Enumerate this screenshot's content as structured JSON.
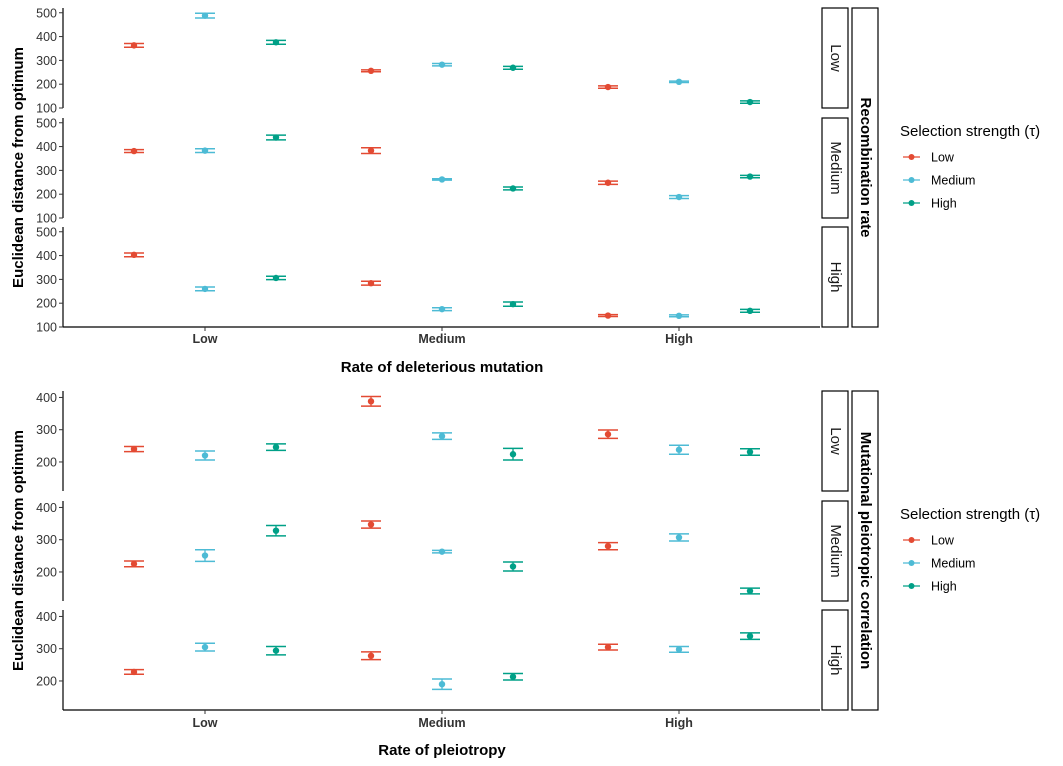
{
  "colors": {
    "Low": "#e34a33",
    "Medium": "#4dbbd5",
    "High": "#00a087"
  },
  "chart_data": [
    {
      "type": "scatter",
      "error_bars": true,
      "xlabel": "Rate of deleterious mutation",
      "ylabel": "Euclidean distance from optimum",
      "categories": [
        "Low",
        "Medium",
        "High"
      ],
      "ylim": [
        100,
        520
      ],
      "yticks": [
        100,
        200,
        300,
        400,
        500
      ],
      "facet_title": "Recombination rate",
      "legend": {
        "title": "Selection strength (τ)",
        "entries": [
          "Low",
          "Medium",
          "High"
        ],
        "position": "right"
      },
      "panels": [
        {
          "label": "Low",
          "series": [
            {
              "name": "Low",
              "values": [
                363,
                256,
                188
              ],
              "errors": [
                8,
                4,
                5
              ]
            },
            {
              "name": "Medium",
              "values": [
                488,
                282,
                210
              ],
              "errors": [
                10,
                5,
                3
              ]
            },
            {
              "name": "High",
              "values": [
                376,
                269,
                125
              ],
              "errors": [
                8,
                6,
                5
              ]
            }
          ]
        },
        {
          "label": "Medium",
          "series": [
            {
              "name": "Low",
              "values": [
                381,
                383,
                248
              ],
              "errors": [
                6,
                12,
                7
              ]
            },
            {
              "name": "Medium",
              "values": [
                383,
                262,
                188
              ],
              "errors": [
                8,
                3,
                6
              ]
            },
            {
              "name": "High",
              "values": [
                438,
                224,
                274
              ],
              "errors": [
                10,
                6,
                5
              ]
            }
          ]
        },
        {
          "label": "High",
          "series": [
            {
              "name": "Low",
              "values": [
                403,
                284,
                148
              ],
              "errors": [
                8,
                8,
                4
              ]
            },
            {
              "name": "Medium",
              "values": [
                260,
                175,
                147
              ],
              "errors": [
                8,
                6,
                4
              ]
            },
            {
              "name": "High",
              "values": [
                306,
                196,
                168
              ],
              "errors": [
                7,
                9,
                6
              ]
            }
          ]
        }
      ]
    },
    {
      "type": "scatter",
      "error_bars": true,
      "xlabel": "Rate of pleiotropy",
      "ylabel": "Euclidean distance from optimum",
      "categories": [
        "Low",
        "Medium",
        "High"
      ],
      "ylim": [
        110,
        420
      ],
      "yticks": [
        200,
        300,
        400
      ],
      "facet_title": "Mutational pleiotropic correlation",
      "legend": {
        "title": "Selection strength (τ)",
        "entries": [
          "Low",
          "Medium",
          "High"
        ],
        "position": "right"
      },
      "panels": [
        {
          "label": "Low",
          "series": [
            {
              "name": "Low",
              "values": [
                240,
                388,
                286
              ],
              "errors": [
                8,
                15,
                13
              ]
            },
            {
              "name": "Medium",
              "values": [
                220,
                280,
                238
              ],
              "errors": [
                14,
                10,
                14
              ]
            },
            {
              "name": "High",
              "values": [
                246,
                224,
                231
              ],
              "errors": [
                10,
                18,
                10
              ]
            }
          ]
        },
        {
          "label": "Medium",
          "series": [
            {
              "name": "Low",
              "values": [
                225,
                347,
                280
              ],
              "errors": [
                9,
                11,
                11
              ]
            },
            {
              "name": "Medium",
              "values": [
                251,
                263,
                307
              ],
              "errors": [
                18,
                4,
                11
              ]
            },
            {
              "name": "High",
              "values": [
                328,
                217,
                141
              ],
              "errors": [
                16,
                14,
                9
              ]
            }
          ]
        },
        {
          "label": "High",
          "series": [
            {
              "name": "Low",
              "values": [
                228,
                278,
                305
              ],
              "errors": [
                7,
                12,
                9
              ]
            },
            {
              "name": "Medium",
              "values": [
                305,
                190,
                298
              ],
              "errors": [
                12,
                16,
                9
              ]
            },
            {
              "name": "High",
              "values": [
                294,
                213,
                339
              ],
              "errors": [
                13,
                10,
                10
              ]
            }
          ]
        }
      ]
    }
  ]
}
